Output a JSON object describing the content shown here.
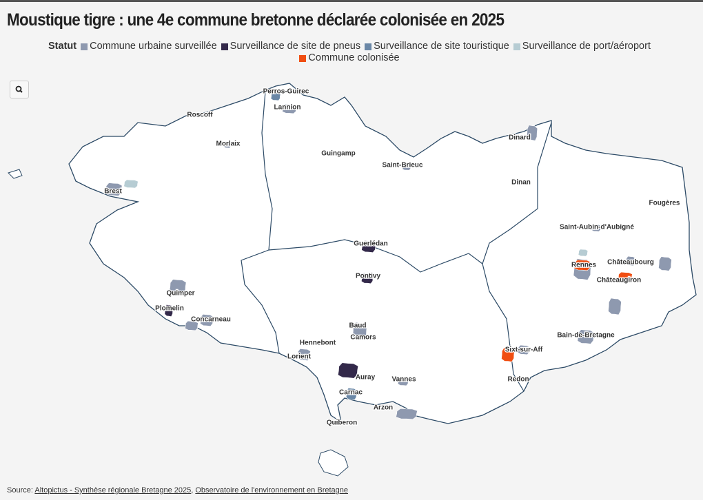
{
  "header": {
    "title": "Moustique tigre : une 4e commune bretonne déclarée colonisée en 2025"
  },
  "legend": {
    "title": "Statut",
    "items": [
      {
        "label": "Commune urbaine surveillée",
        "color": "#8e99af"
      },
      {
        "label": "Surveillance de site de pneus",
        "color": "#33294a"
      },
      {
        "label": "Surveillance de site touristique",
        "color": "#6a87a6"
      },
      {
        "label": "Surveillance de port/aéroport",
        "color": "#b6ccd3"
      },
      {
        "label": "Commune colonisée",
        "color": "#f04e12"
      }
    ]
  },
  "map": {
    "places": [
      "Perros-Guirec",
      "Lannion",
      "Roscoff",
      "Morlaix",
      "Guingamp",
      "Saint-Brieuc",
      "Dinard",
      "Dinan",
      "Fougères",
      "Brest",
      "Saint-Aubin-d'Aubigné",
      "Guerlédan",
      "Rennes",
      "Châteaubourg",
      "Châteaugiron",
      "Pontivy",
      "Quimper",
      "Plomelin",
      "Concarneau",
      "Baud",
      "Camors",
      "Bain-de-Bretagne",
      "Hennebont",
      "Sixt-sur-Aff",
      "Lorient",
      "Auray",
      "Vannes",
      "Redon",
      "Carnac",
      "Arzon",
      "Quiberon"
    ]
  },
  "source": {
    "label": "Source:",
    "links": [
      "Altopictus - Synthèse régionale Bretagne 2025",
      "Observatoire de l'environnement en Bretagne"
    ],
    "separator": ", "
  }
}
